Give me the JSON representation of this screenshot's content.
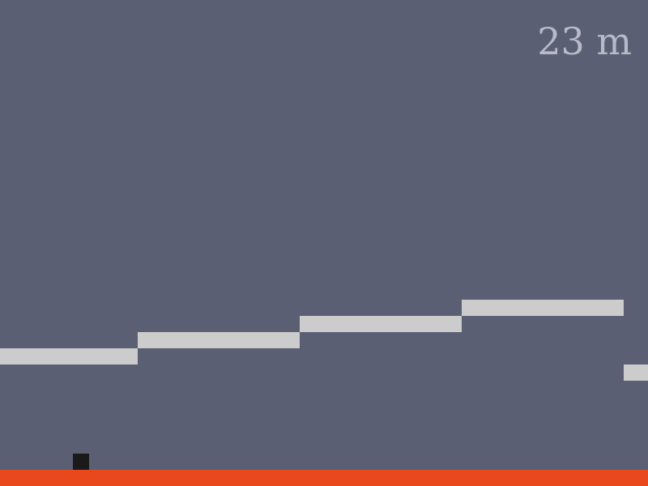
{
  "hud": {
    "distance": "23 m"
  },
  "colors": {
    "background": "#5b5f73",
    "platform": "#cccccc",
    "player": "#1a1a1a",
    "ground": "#e9471c",
    "score_text": "#b8bac8"
  },
  "icons": {
    "player": "black-square"
  }
}
